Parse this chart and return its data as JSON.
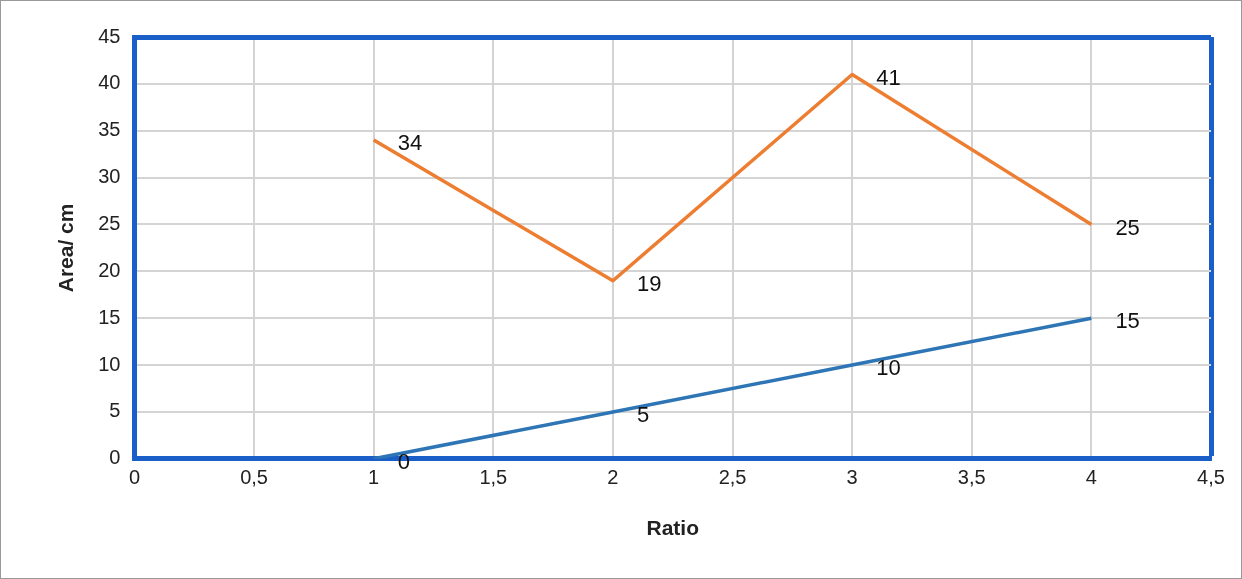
{
  "chart_data": {
    "type": "line",
    "xlabel": "Ratio",
    "ylabel": "Area/ cm",
    "xlim": [
      0,
      4.5
    ],
    "xticks": [
      0,
      {
        "value": 0.5,
        "label": "0,5"
      },
      1,
      {
        "value": 1.5,
        "label": "1,5"
      },
      2,
      {
        "value": 2.5,
        "label": "2,5"
      },
      3,
      {
        "value": 3.5,
        "label": "3,5"
      },
      4,
      {
        "value": 4.5,
        "label": "4,5"
      }
    ],
    "ylim": [
      0,
      45
    ],
    "yticks": [
      0,
      5,
      10,
      15,
      20,
      25,
      30,
      35,
      40,
      45
    ],
    "grid": true,
    "legend": false,
    "marker": "none",
    "line_style": "solid",
    "data_labels": true,
    "series": [
      {
        "color": "#2e75b6",
        "x": [
          1,
          2,
          3,
          4
        ],
        "values": [
          0,
          5,
          10,
          15
        ]
      },
      {
        "color": "#ed7d31",
        "x": [
          1,
          2,
          3,
          4
        ],
        "values": [
          34,
          19,
          41,
          25
        ]
      }
    ]
  }
}
